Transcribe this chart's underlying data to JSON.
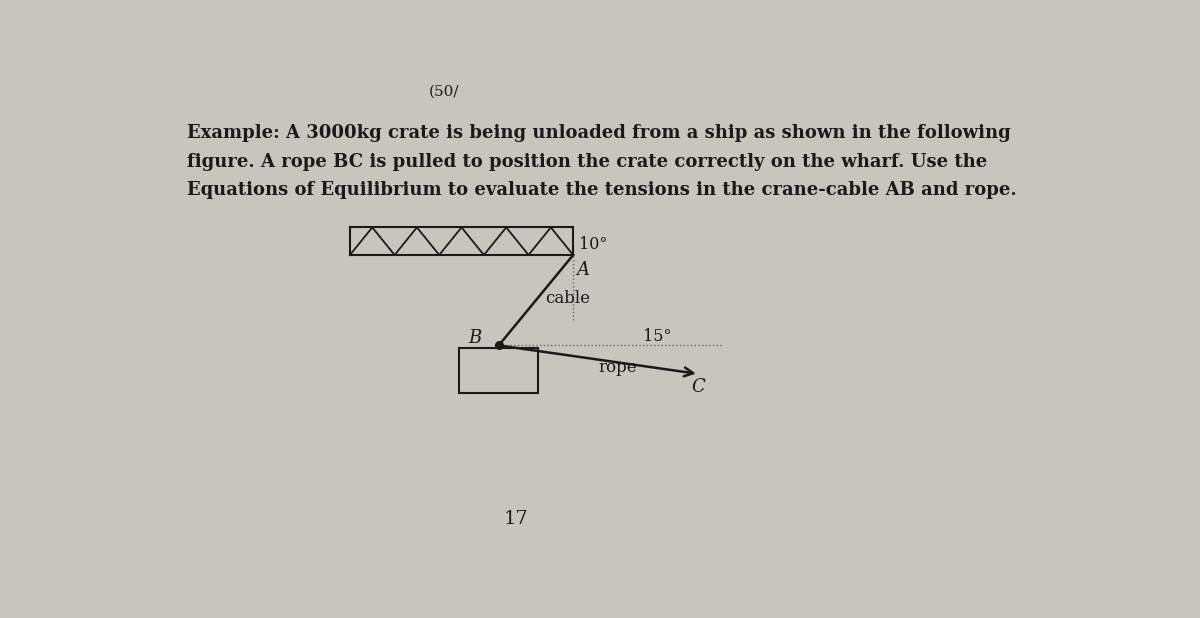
{
  "bg_color": "#c8c5bf",
  "text_color": "#1a1a1a",
  "title_text": "(50/",
  "problem_text_lines": [
    "Example: A 3000kg crate is being unloaded from a ship as shown in the following",
    "figure. A rope BC is pulled to position the crate correctly on the wharf. Use the",
    "Equations of Equilibrium to evaluate the tensions in the crane-cable AB and rope."
  ],
  "page_number": "17",
  "angle_label_10": "10°",
  "angle_label_15": "15°",
  "cable_label": "cable",
  "rope_label": "rope",
  "label_A": "A",
  "label_B": "B",
  "label_C": "C"
}
